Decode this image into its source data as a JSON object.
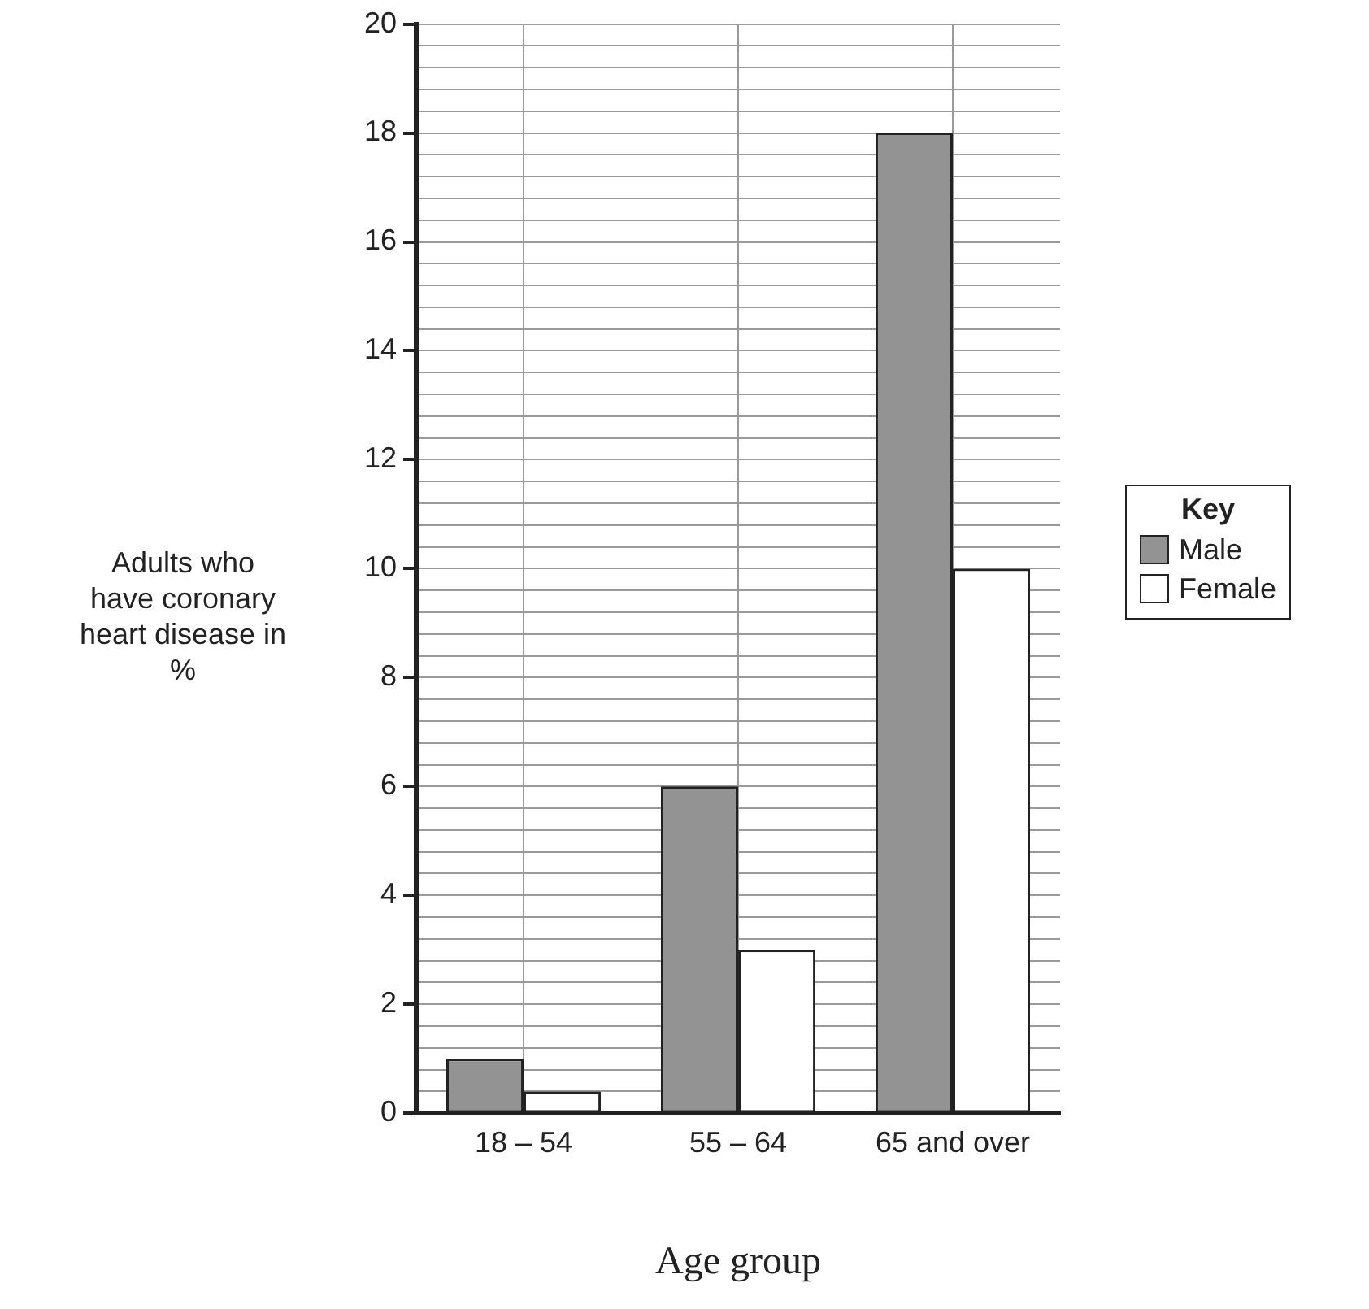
{
  "chart_data": {
    "type": "bar",
    "xlabel": "Age group",
    "ylabel": "Adults who have coronary heart disease in %",
    "legend_title": "Key",
    "categories": [
      "18 – 54",
      "55 – 64",
      "65 and over"
    ],
    "series": [
      {
        "name": "Male",
        "color": "#939393",
        "values": [
          1.0,
          6.0,
          18.0
        ]
      },
      {
        "name": "Female",
        "color": "#ffffff",
        "values": [
          0.4,
          3.0,
          10.0
        ]
      }
    ],
    "ylim": [
      0,
      20
    ],
    "yticks": [
      0,
      {
        "value": 0.4,
        "label": null
      },
      {
        "value": 0.8,
        "label": null
      },
      {
        "value": 1.2,
        "label": null
      },
      {
        "value": 1.6,
        "label": null
      },
      2,
      {
        "value": 2.4,
        "label": null
      },
      {
        "value": 2.8,
        "label": null
      },
      {
        "value": 3.2,
        "label": null
      },
      {
        "value": 3.6,
        "label": null
      },
      4,
      {
        "value": 4.4,
        "label": null
      },
      {
        "value": 4.8,
        "label": null
      },
      {
        "value": 5.2,
        "label": null
      },
      {
        "value": 5.6,
        "label": null
      },
      6,
      {
        "value": 6.4,
        "label": null
      },
      {
        "value": 6.8,
        "label": null
      },
      {
        "value": 7.2,
        "label": null
      },
      {
        "value": 7.6,
        "label": null
      },
      8,
      {
        "value": 8.4,
        "label": null
      },
      {
        "value": 8.8,
        "label": null
      },
      {
        "value": 9.2,
        "label": null
      },
      {
        "value": 9.6,
        "label": null
      },
      10,
      {
        "value": 10.4,
        "label": null
      },
      {
        "value": 10.8,
        "label": null
      },
      {
        "value": 11.2,
        "label": null
      },
      {
        "value": 11.6,
        "label": null
      },
      12,
      {
        "value": 12.4,
        "label": null
      },
      {
        "value": 12.8,
        "label": null
      },
      {
        "value": 13.2,
        "label": null
      },
      {
        "value": 13.6,
        "label": null
      },
      14,
      {
        "value": 14.4,
        "label": null
      },
      {
        "value": 14.8,
        "label": null
      },
      {
        "value": 15.2,
        "label": null
      },
      {
        "value": 15.6,
        "label": null
      },
      16,
      {
        "value": 16.4,
        "label": null
      },
      {
        "value": 16.8,
        "label": null
      },
      {
        "value": 17.2,
        "label": null
      },
      {
        "value": 17.6,
        "label": null
      },
      18,
      {
        "value": 18.4,
        "label": null
      },
      {
        "value": 18.8,
        "label": null
      },
      {
        "value": 19.2,
        "label": null
      },
      {
        "value": 19.6,
        "label": null
      },
      20
    ],
    "grid": true,
    "legend": "right"
  }
}
